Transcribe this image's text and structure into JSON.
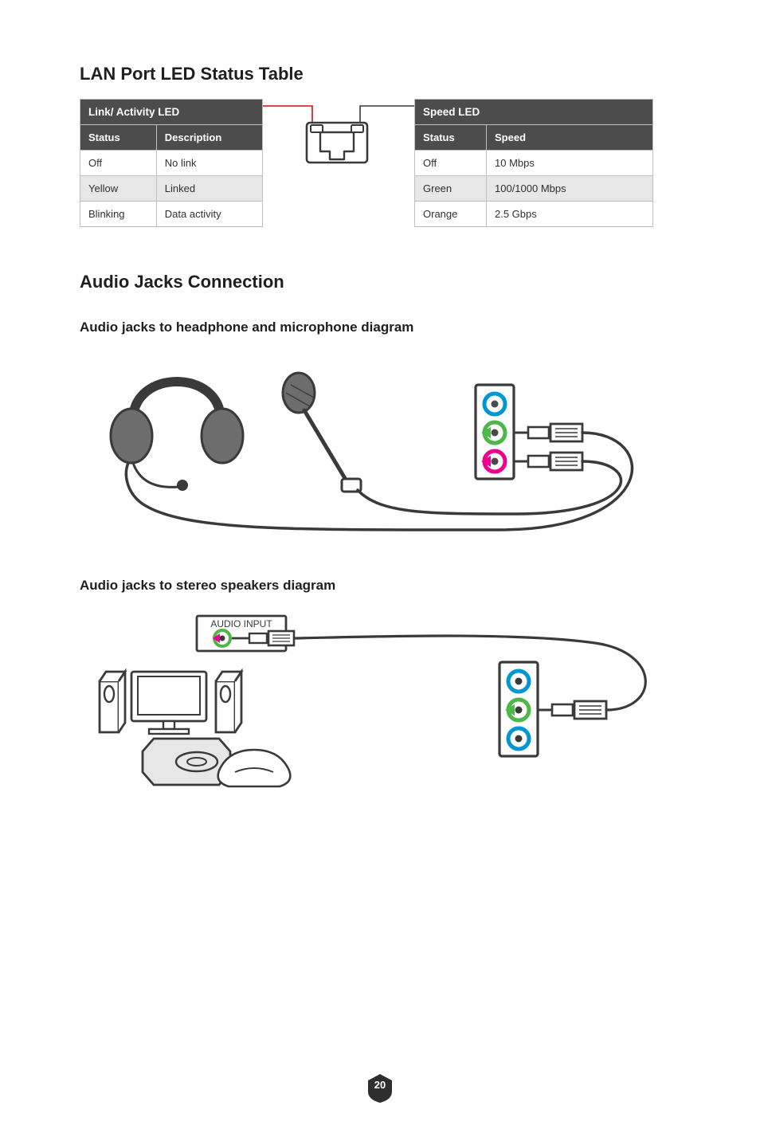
{
  "section1": {
    "title": "LAN Port LED Status Table",
    "link_table": {
      "header_span": "Link/ Activity LED",
      "cols": [
        "Status",
        "Description"
      ],
      "rows": [
        {
          "c": [
            "Off",
            "No link"
          ],
          "shade": false
        },
        {
          "c": [
            "Yellow",
            "Linked"
          ],
          "shade": true
        },
        {
          "c": [
            "Blinking",
            "Data activity"
          ],
          "shade": false
        }
      ]
    },
    "speed_table": {
      "header_span": "Speed LED",
      "cols": [
        "Status",
        "Speed"
      ],
      "rows": [
        {
          "c": [
            "Off",
            "10 Mbps"
          ],
          "shade": false
        },
        {
          "c": [
            "Green",
            "100/1000 Mbps"
          ],
          "shade": true
        },
        {
          "c": [
            "Orange",
            "2.5 Gbps"
          ],
          "shade": false
        }
      ]
    },
    "port_diagram": {
      "link_leader_color": "#e30613",
      "speed_leader_color": "#3a3a3a",
      "stroke_color": "#3a3a3a",
      "stroke_width": 2.2
    }
  },
  "section2": {
    "title": "Audio Jacks Connection",
    "diagram1_title": "Audio jacks to headphone and microphone diagram",
    "diagram2_title": "Audio jacks to stereo speakers diagram",
    "d1": {
      "stroke": "#3a3a3a",
      "headset_fill": "#6d6d6d",
      "mic_fill": "#6d6d6d",
      "jack_panel_bg": "#ffffff",
      "jack_blue": "#0096d6",
      "jack_green": "#4db749",
      "jack_pink": "#ec008c",
      "jack_inner": "#4a4a4a",
      "arrow_green": "#4db749",
      "arrow_pink": "#ec008c"
    },
    "d2": {
      "stroke": "#3a3a3a",
      "speaker_label": "AUDIO INPUT",
      "jack_blue": "#0096d6",
      "jack_green": "#4db749",
      "jack_green_ring": "#4db749",
      "arrow_green": "#4db749",
      "arrow_pink": "#ec008c",
      "tv_fill": "#ffffff"
    }
  },
  "page_number": "20",
  "badge": {
    "fill": "#2e2e2e"
  }
}
